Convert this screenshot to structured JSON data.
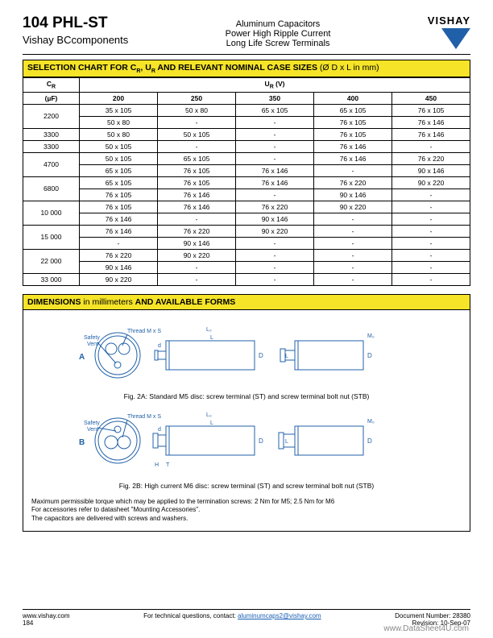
{
  "header": {
    "part": "104 PHL-ST",
    "company": "Vishay BCcomponents",
    "brand": "VISHAY",
    "desc1": "Aluminum Capacitors",
    "desc2": "Power High Ripple Current",
    "desc3": "Long Life Screw Terminals"
  },
  "selection": {
    "title_main": "SELECTION CHART FOR C",
    "title_r": "R",
    "title_mid": ", U",
    "title_r2": "R",
    "title_rest": " AND RELEVANT NOMINAL CASE SIZES",
    "title_paren": " (Ø D x L in mm)",
    "col_cr": "C",
    "col_cr_sub": "R",
    "col_cr_unit": "(µF)",
    "col_ur": "U",
    "col_ur_sub": "R",
    "col_ur_unit": " (V)",
    "voltages": [
      "200",
      "250",
      "350",
      "400",
      "450"
    ],
    "rows": [
      {
        "cap": "2200",
        "span": 2,
        "vals": [
          [
            "35 x 105",
            "50 x 80",
            "65 x 105",
            "65 x 105",
            "76 x 105"
          ],
          [
            "50 x 80",
            "-",
            "-",
            "76 x 105",
            "76 x 146"
          ]
        ]
      },
      {
        "cap": "3300",
        "span": 1,
        "vals": [
          [
            "50 x 80",
            "50 x 105",
            "-",
            "76 x 105",
            "76 x 146"
          ]
        ]
      },
      {
        "cap": "3300",
        "span": 1,
        "vals": [
          [
            "50 x 105",
            "-",
            "-",
            "76 x 146",
            "-"
          ]
        ]
      },
      {
        "cap": "4700",
        "span": 2,
        "vals": [
          [
            "50 x 105",
            "65 x 105",
            "-",
            "76 x 146",
            "76 x 220"
          ],
          [
            "65 x 105",
            "76 x 105",
            "76 x 146",
            "-",
            "90 x 146"
          ]
        ]
      },
      {
        "cap": "6800",
        "span": 2,
        "vals": [
          [
            "65 x 105",
            "76 x 105",
            "76 x 146",
            "76 x 220",
            "90 x 220"
          ],
          [
            "76 x 105",
            "76 x 146",
            "-",
            "90 x 146",
            "-"
          ]
        ]
      },
      {
        "cap": "10 000",
        "span": 2,
        "vals": [
          [
            "76 x 105",
            "76 x 146",
            "76 x 220",
            "90 x 220",
            "-"
          ],
          [
            "76 x 146",
            "-",
            "90 x 146",
            "-",
            "-"
          ]
        ]
      },
      {
        "cap": "15 000",
        "span": 2,
        "vals": [
          [
            "76 x 146",
            "76 x 220",
            "90 x 220",
            "-",
            "-"
          ],
          [
            "-",
            "90 x 146",
            "-",
            "-",
            "-"
          ]
        ]
      },
      {
        "cap": "22 000",
        "span": 2,
        "vals": [
          [
            "76 x 220",
            "90 x 220",
            "-",
            "-",
            "-"
          ],
          [
            "90 x 146",
            "-",
            "-",
            "-",
            "-"
          ]
        ]
      },
      {
        "cap": "33 000",
        "span": 1,
        "vals": [
          [
            "90 x 220",
            "-",
            "-",
            "-",
            "-"
          ]
        ]
      }
    ],
    "title_bg": "#f5e428"
  },
  "dimensions": {
    "title_a": "DIMENSIONS",
    "title_b": " in millimeters ",
    "title_c": "AND AVAILABLE FORMS",
    "labels": {
      "safety_vent": "Safety\nVent",
      "thread": "Thread M x S",
      "A": "A",
      "B": "B",
      "D": "D",
      "L": "L",
      "L0": "L₀",
      "M0": "M₀",
      "d": "d",
      "H": "H",
      "T": "T"
    },
    "fig2a": "Fig. 2A: Standard M5 disc: screw terminal (ST) and screw terminal bolt nut (STB)",
    "fig2b": "Fig. 2B: High current M6 disc: screw terminal (ST) and screw terminal bolt nut (STB)",
    "notes1": "Maximum permissible torque which may be applied to the termination screws: 2 Nm for M5; 2.5 Nm for M6",
    "notes2": "For accessories refer to datasheet \"Mounting Accessories\".",
    "notes3": "The capacitors are delivered with screws and washers.",
    "diagram_color": "#2060a8"
  },
  "footer": {
    "url": "www.vishay.com",
    "page": "184",
    "contact_pre": "For technical questions, contact: ",
    "contact_email": "aluminumcaps2@vishay.com",
    "doc": "Document Number: 28380",
    "rev": "Revision: 10-Sep-07",
    "watermark": "www.DataSheet4U.com"
  }
}
